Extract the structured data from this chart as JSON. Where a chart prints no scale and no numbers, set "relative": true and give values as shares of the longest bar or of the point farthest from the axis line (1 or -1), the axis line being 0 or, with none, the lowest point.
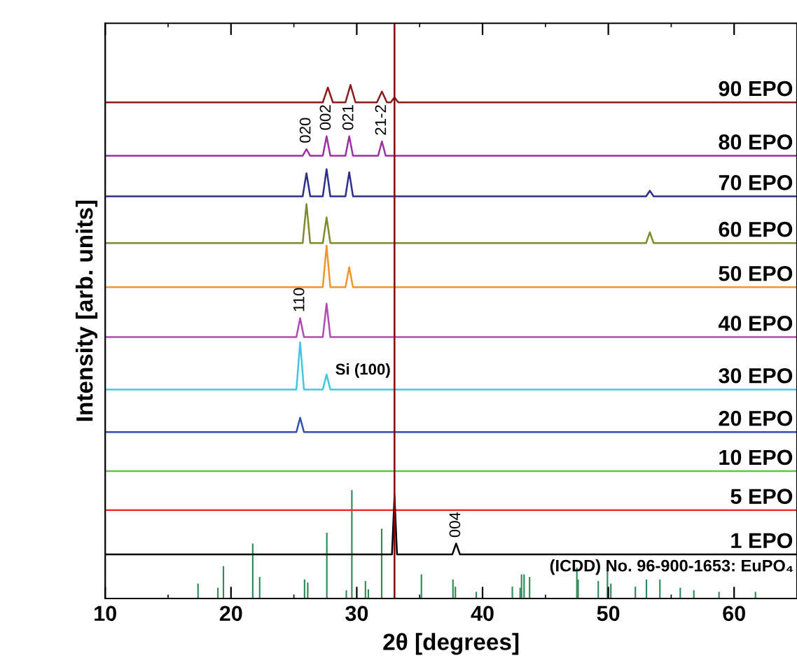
{
  "chart_data": {
    "type": "line",
    "relative": true,
    "xlabel": "2θ [degrees]",
    "ylabel": "Intensity [arb. units]",
    "xlim": [
      10,
      65
    ],
    "xticks": [
      10,
      20,
      30,
      40,
      50,
      60
    ],
    "grid": false,
    "legend": false,
    "marker": "none",
    "line_style": "solid",
    "ref_lines": [
      {
        "axis": "x",
        "value": 33,
        "label": null,
        "color": "#8b0000",
        "line_style": "solid"
      }
    ],
    "annotations": [
      {
        "text": "020",
        "x": 26,
        "y": 0.875
      },
      {
        "text": "002",
        "x": 27.6,
        "y": 0.9
      },
      {
        "text": "021",
        "x": 29.4,
        "y": 0.9
      },
      {
        "text": "21-2",
        "x": 32,
        "y": 0.89
      },
      {
        "text": "110",
        "x": 25.5,
        "y": 0.546
      },
      {
        "text": "Si (100)",
        "x": 33,
        "y": 0.407
      },
      {
        "text": "004",
        "x": 37.9,
        "y": 0.107
      },
      "(ICDD) No. 96-900-1653: EuPO₄"
    ],
    "series": [
      {
        "name": "90 EPO",
        "color": "#8b1a1a",
        "x": [
          10,
          27.3,
          27.7,
          28.1,
          29.1,
          29.5,
          29.9,
          31.6,
          32,
          32.4,
          32.7,
          33,
          33.3,
          65
        ],
        "values": [
          0.966,
          0.966,
          0.995,
          0.966,
          0.966,
          1.0,
          0.966,
          0.966,
          0.987,
          0.966,
          0.966,
          0.976,
          0.966,
          0.966
        ]
      },
      {
        "name": "80 EPO",
        "color": "#9b30a0",
        "x": [
          10,
          25.7,
          26,
          26.3,
          27.3,
          27.6,
          27.9,
          29.1,
          29.4,
          29.7,
          31.7,
          32,
          32.3,
          65
        ],
        "values": [
          0.862,
          0.862,
          0.875,
          0.862,
          0.862,
          0.9,
          0.862,
          0.862,
          0.9,
          0.862,
          0.862,
          0.89,
          0.862,
          0.862
        ]
      },
      {
        "name": "70 EPO",
        "color": "#2e2e8b",
        "x": [
          10,
          25.7,
          26,
          26.3,
          27.3,
          27.6,
          27.9,
          29.1,
          29.4,
          29.7,
          53,
          53.3,
          53.6,
          65
        ],
        "values": [
          0.783,
          0.783,
          0.828,
          0.783,
          0.783,
          0.836,
          0.783,
          0.783,
          0.83,
          0.783,
          0.783,
          0.794,
          0.783,
          0.783
        ]
      },
      {
        "name": "60 EPO",
        "color": "#7f8a2e",
        "x": [
          10,
          25.7,
          26,
          26.3,
          27.3,
          27.6,
          27.9,
          53,
          53.3,
          53.6,
          65
        ],
        "values": [
          0.692,
          0.692,
          0.768,
          0.692,
          0.692,
          0.742,
          0.692,
          0.692,
          0.713,
          0.692,
          0.692
        ]
      },
      {
        "name": "50 EPO",
        "color": "#f0952a",
        "x": [
          10,
          27.3,
          27.6,
          27.9,
          29.1,
          29.4,
          29.7,
          65
        ],
        "values": [
          0.606,
          0.606,
          0.687,
          0.606,
          0.606,
          0.645,
          0.606,
          0.606
        ]
      },
      {
        "name": "40 EPO",
        "color": "#b04cb0",
        "x": [
          10,
          25.2,
          25.5,
          25.8,
          27.3,
          27.6,
          27.9,
          65
        ],
        "values": [
          0.509,
          0.509,
          0.546,
          0.509,
          0.509,
          0.574,
          0.509,
          0.509
        ]
      },
      {
        "name": "30 EPO",
        "color": "#40c8e0",
        "x": [
          10,
          25.2,
          25.5,
          25.8,
          27.3,
          27.6,
          27.9,
          65
        ],
        "values": [
          0.407,
          0.407,
          0.499,
          0.407,
          0.407,
          0.436,
          0.407,
          0.407
        ]
      },
      {
        "name": "20 EPO",
        "color": "#3050b0",
        "x": [
          10,
          25.2,
          25.5,
          25.8,
          65
        ],
        "values": [
          0.324,
          0.324,
          0.352,
          0.324,
          0.324
        ]
      },
      {
        "name": "10 EPO",
        "color": "#5cc84a",
        "x": [
          10,
          65
        ],
        "values": [
          0.248,
          0.248
        ]
      },
      {
        "name": "5 EPO",
        "color": "#f03030",
        "x": [
          10,
          65
        ],
        "values": [
          0.172,
          0.172
        ]
      },
      {
        "name": "1 EPO",
        "color": "#000000",
        "x": [
          10,
          32.8,
          33,
          33.2,
          37.6,
          37.9,
          38.2,
          65
        ],
        "values": [
          0.086,
          0.086,
          0.2,
          0.086,
          0.086,
          0.107,
          0.086,
          0.086
        ]
      },
      {
        "type": "bar",
        "color": "#2e8b57",
        "x": [
          17.38,
          18.96,
          19.4,
          21.73,
          22.28,
          25.85,
          26.1,
          27.62,
          29.17,
          29.61,
          30.69,
          30.92,
          31.98,
          35.14,
          37.65,
          37.84,
          39.5,
          42.37,
          42.99,
          43.1,
          43.3,
          43.74,
          47.5,
          47.6,
          49.2,
          49.93,
          50.2,
          52.15,
          53.03,
          54.1,
          55.72,
          56.8,
          58.8,
          61.7
        ],
        "values": [
          0.029,
          0.021,
          0.063,
          0.107,
          0.042,
          0.037,
          0.031,
          0.128,
          0.016,
          0.211,
          0.034,
          0.018,
          0.136,
          0.047,
          0.037,
          0.023,
          0.013,
          0.023,
          0.021,
          0.047,
          0.047,
          0.042,
          0.06,
          0.037,
          0.034,
          0.055,
          0.029,
          0.023,
          0.037,
          0.037,
          0.021,
          0.016,
          0.013,
          0.013
        ]
      }
    ]
  }
}
